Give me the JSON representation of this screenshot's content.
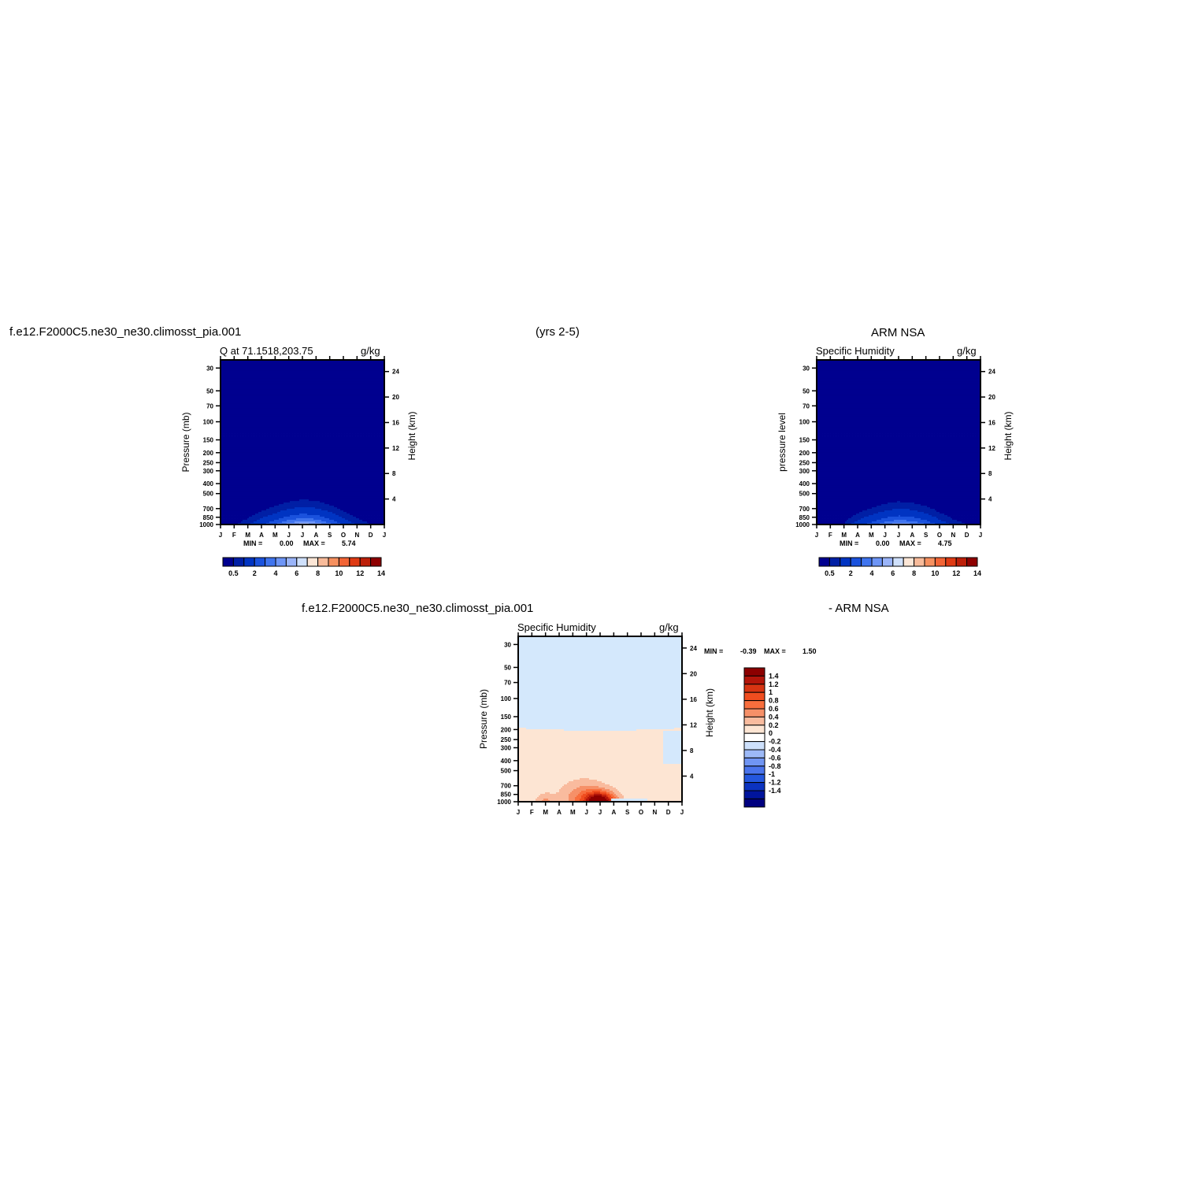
{
  "header": {
    "case_name": "f.e12.F2000C5.ne30_ne30.climosst_pia.001",
    "years": "(yrs 2-5)",
    "obs_name": "ARM NSA"
  },
  "diff_header": {
    "case_name": "f.e12.F2000C5.ne30_ne30.climosst_pia.001",
    "minus_obs": "- ARM NSA"
  },
  "colors": {
    "scale_14": [
      "#00008f",
      "#001fa5",
      "#0034c2",
      "#1a52dd",
      "#3f74ee",
      "#6d95f6",
      "#9ab4f8",
      "#cfe0fb",
      "#fce6d6",
      "#f8bb9a",
      "#f6905f",
      "#f26435",
      "#df3a13",
      "#bd1f09",
      "#8e0000"
    ],
    "scale_diff_top_to_bottom": [
      "#8c0000",
      "#b3150a",
      "#d73412",
      "#f04d1f",
      "#f86e3d",
      "#f69068",
      "#f9bb9e",
      "#fde5d3",
      "#ffffff",
      "#cde0fb",
      "#9cb9f7",
      "#7095f3",
      "#4a74ec",
      "#2457de",
      "#0b33c0",
      "#00149d",
      "#000080"
    ]
  },
  "chart_data": [
    {
      "type": "heatmap",
      "panel": "model",
      "title_left": "Q at 71.1518,203.75",
      "title_right": "g/kg",
      "ylabel": "Pressure (mb)",
      "y2label": "Height (km)",
      "x_tick_labels": [
        "J",
        "F",
        "M",
        "A",
        "M",
        "J",
        "J",
        "A",
        "S",
        "O",
        "N",
        "D",
        "J"
      ],
      "y_ticks": [
        30,
        50,
        70,
        100,
        150,
        200,
        250,
        300,
        400,
        500,
        700,
        850,
        1000
      ],
      "y_range_mb": [
        25,
        1000
      ],
      "y2_ticks": [
        4,
        8,
        12,
        16,
        20,
        24
      ],
      "stats_min_label": "MIN =",
      "stats_min": "0.00",
      "stats_max_label": "MAX =",
      "stats_max": "5.74",
      "colorbar": {
        "levels": [
          0.5,
          1,
          2,
          3,
          4,
          5,
          6,
          7,
          8,
          9,
          10,
          11,
          12,
          13,
          14
        ],
        "tick_labels": [
          "0.5",
          "2",
          "4",
          "6",
          "8",
          "10",
          "12",
          "14"
        ]
      },
      "monthly_surface_max": [
        0.4,
        0.4,
        0.9,
        1.8,
        3.0,
        4.6,
        5.7,
        5.0,
        3.4,
        1.8,
        0.9,
        0.5,
        0.4
      ]
    },
    {
      "type": "heatmap",
      "panel": "obs",
      "title_left": "Specific Humidity",
      "title_right": "g/kg",
      "ylabel": "pressure level",
      "y2label": "Height (km)",
      "x_tick_labels": [
        "J",
        "F",
        "M",
        "A",
        "M",
        "J",
        "J",
        "A",
        "S",
        "O",
        "N",
        "D",
        "J"
      ],
      "y_ticks": [
        30,
        50,
        70,
        100,
        150,
        200,
        250,
        300,
        400,
        500,
        700,
        850,
        1000
      ],
      "y_range_mb": [
        25,
        1000
      ],
      "y2_ticks": [
        4,
        8,
        12,
        16,
        20,
        24
      ],
      "stats_min_label": "MIN =",
      "stats_min": "0.00",
      "stats_max_label": "MAX =",
      "stats_max": "4.75",
      "colorbar": {
        "levels": [
          0.5,
          1,
          2,
          3,
          4,
          5,
          6,
          7,
          8,
          9,
          10,
          11,
          12,
          13,
          14
        ],
        "tick_labels": [
          "0.5",
          "2",
          "4",
          "6",
          "8",
          "10",
          "12",
          "14"
        ]
      },
      "monthly_surface_max": [
        0.5,
        0.5,
        0.5,
        1.5,
        2.5,
        3.8,
        4.7,
        4.2,
        3.0,
        1.6,
        0.8,
        0.5,
        0.5
      ]
    },
    {
      "type": "heatmap",
      "panel": "difference",
      "title_left": "Specific Humidity",
      "title_right": "g/kg",
      "ylabel": "Pressure (mb)",
      "y2label": "Height (km)",
      "x_tick_labels": [
        "J",
        "F",
        "M",
        "A",
        "M",
        "J",
        "J",
        "A",
        "S",
        "O",
        "N",
        "D",
        "J"
      ],
      "y_ticks": [
        30,
        50,
        70,
        100,
        150,
        200,
        250,
        300,
        400,
        500,
        700,
        850,
        1000
      ],
      "y_range_mb": [
        25,
        1000
      ],
      "y2_ticks": [
        4,
        8,
        12,
        16,
        20,
        24
      ],
      "stats_min_label": "MIN =",
      "stats_min": "-0.39",
      "stats_max_label": "MAX =",
      "stats_max": "1.50",
      "colorbar": {
        "levels": [
          1.4,
          1.2,
          1,
          0.8,
          0.6,
          0.4,
          0.2,
          0,
          -0.2,
          -0.4,
          -0.6,
          -0.8,
          -1,
          -1.2,
          -1.4
        ],
        "tick_labels": [
          "1.4",
          "1.2",
          "1",
          "0.8",
          "0.6",
          "0.4",
          "0.2",
          "0",
          "-0.2",
          "-0.4",
          "-0.6",
          "-0.8",
          "-1",
          "-1.2",
          "-1.4"
        ]
      },
      "positive_peak_month": "J",
      "positive_peak_value": 1.5,
      "negative_min_value": -0.39
    }
  ]
}
